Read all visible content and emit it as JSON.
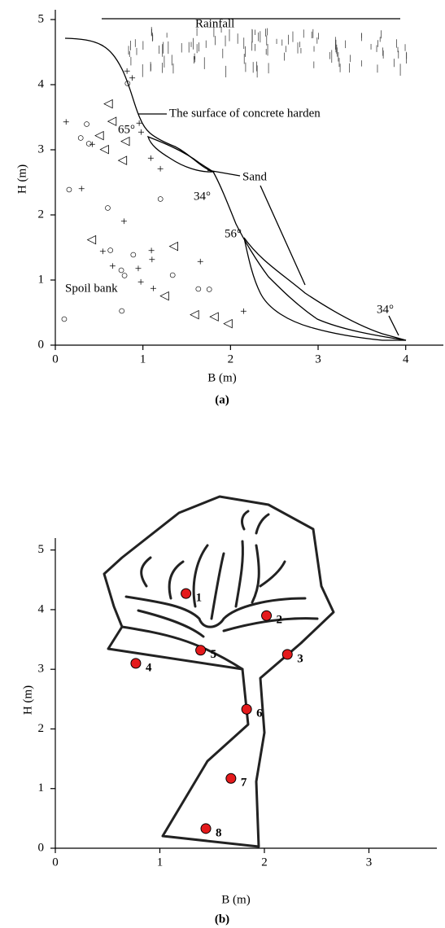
{
  "chart_data": [
    {
      "type": "profile",
      "xlabel": "B (m)",
      "ylabel": "H (m)",
      "panel_label": "(a)",
      "xlim": [
        0,
        4.43
      ],
      "ylim": [
        0,
        5.15
      ],
      "xticks": [
        0,
        1,
        2,
        3,
        4
      ],
      "yticks": [
        0,
        1,
        2,
        3,
        4,
        5
      ],
      "annotations": [
        "Rainfall",
        "The surface of concrete harden",
        "65°",
        "Sand",
        "34°",
        "56°",
        "34°",
        "Spoil bank"
      ]
    },
    {
      "type": "scatter",
      "xlabel": "B (m)",
      "ylabel": "H (m)",
      "panel_label": "(b)",
      "xlim": [
        0,
        3.65
      ],
      "ylim": [
        0,
        5.2
      ],
      "xticks": [
        0,
        1,
        2,
        3
      ],
      "yticks": [
        0,
        1,
        2,
        3,
        4,
        5
      ],
      "x": [
        1.25,
        2.02,
        2.22,
        0.77,
        1.39,
        1.83,
        1.68,
        1.44
      ],
      "values": [
        4.27,
        3.9,
        3.25,
        3.1,
        3.32,
        2.33,
        1.17,
        0.33
      ],
      "labels": [
        "1",
        "2",
        "3",
        "4",
        "5",
        "6",
        "7",
        "8"
      ],
      "color": "#e41a1c"
    }
  ]
}
